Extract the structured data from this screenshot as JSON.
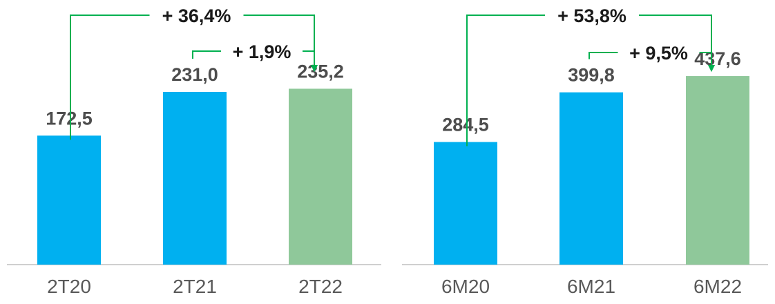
{
  "chart_data": [
    {
      "type": "bar",
      "categories": [
        "2T20",
        "2T21",
        "2T22"
      ],
      "values": [
        172.5,
        231.0,
        235.2
      ],
      "value_labels": [
        "172,5",
        "231,0",
        "235,2"
      ],
      "bar_colors": [
        "#00b0f0",
        "#00b0f0",
        "#8fc89a"
      ],
      "annotations": [
        {
          "text": "+ 36,4%",
          "from": 0,
          "to": 2
        },
        {
          "text": "+ 1,9%",
          "from": 1,
          "to": 2
        }
      ],
      "ylim": [
        0,
        340
      ],
      "grid": false,
      "legend": "none"
    },
    {
      "type": "bar",
      "categories": [
        "6M20",
        "6M21",
        "6M22"
      ],
      "values": [
        284.5,
        399.8,
        437.6
      ],
      "value_labels": [
        "284,5",
        "399,8",
        "437,6"
      ],
      "bar_colors": [
        "#00b0f0",
        "#00b0f0",
        "#8fc89a"
      ],
      "annotations": [
        {
          "text": "+ 53,8%",
          "from": 0,
          "to": 2
        },
        {
          "text": "+ 9,5%",
          "from": 1,
          "to": 2
        }
      ],
      "ylim": [
        0,
        590
      ],
      "grid": false,
      "legend": "none"
    }
  ],
  "colors": {
    "arrow": "#00b050",
    "axis": "#bfbfbf"
  }
}
